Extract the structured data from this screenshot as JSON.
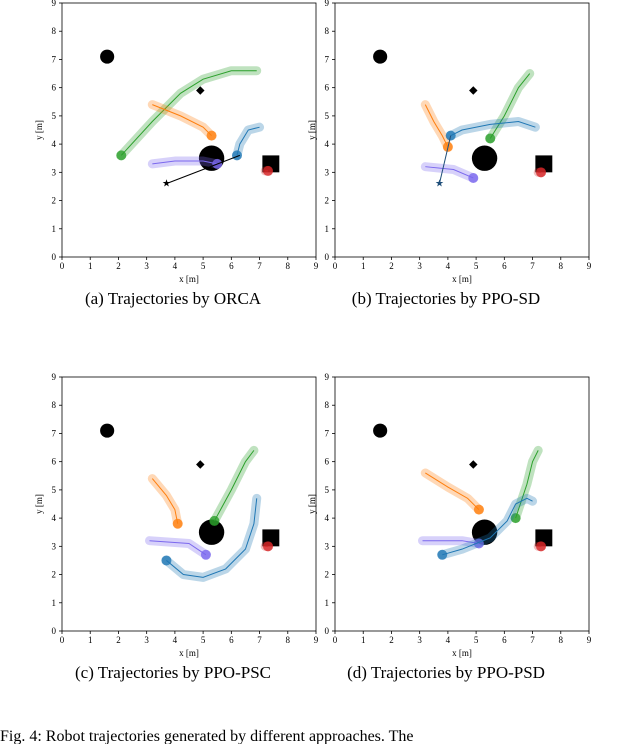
{
  "chart_data": [
    {
      "type": "trajectory",
      "caption": "(a)  Trajectories by ORCA",
      "xlabel": "x [m]",
      "ylabel": "y [m]",
      "xlim": [
        0,
        9
      ],
      "ylim": [
        0,
        9
      ],
      "xticks": [
        0,
        1,
        2,
        3,
        4,
        5,
        6,
        7,
        8,
        9
      ],
      "yticks": [
        0,
        1,
        2,
        3,
        4,
        5,
        6,
        7,
        8,
        9
      ],
      "obstacles": [
        {
          "shape": "circle",
          "x": 1.6,
          "y": 7.1,
          "size": 0.25
        },
        {
          "shape": "circle",
          "x": 5.3,
          "y": 3.5,
          "size": 0.45
        },
        {
          "shape": "diamond",
          "x": 4.9,
          "y": 5.9,
          "size": 0.15
        },
        {
          "shape": "square",
          "x": 7.4,
          "y": 3.3,
          "size": 0.3
        }
      ],
      "series": [
        {
          "color": "#2ca02c",
          "style": "trail",
          "x": [
            6.9,
            6.0,
            5.0,
            4.2,
            3.2,
            2.1
          ],
          "y": [
            6.6,
            6.6,
            6.3,
            5.8,
            4.8,
            3.6
          ]
        },
        {
          "color": "#ff7f0e",
          "style": "trail",
          "x": [
            3.2,
            4.2,
            5.0,
            5.3
          ],
          "y": [
            5.4,
            5.0,
            4.6,
            4.3
          ]
        },
        {
          "color": "#1f77b4",
          "style": "trail",
          "x": [
            7.0,
            6.6,
            6.3,
            6.2
          ],
          "y": [
            4.6,
            4.5,
            4.0,
            3.6
          ]
        },
        {
          "color": "#7b68ee",
          "style": "trail",
          "x": [
            3.2,
            4.0,
            5.0,
            5.5
          ],
          "y": [
            3.3,
            3.4,
            3.4,
            3.3
          ]
        },
        {
          "color": "#d62728",
          "style": "trail",
          "x": [
            7.2,
            7.3
          ],
          "y": [
            3.05,
            3.05
          ]
        },
        {
          "color": "#000000",
          "style": "robot",
          "x": [
            3.7,
            6.3
          ],
          "y": [
            2.6,
            3.6
          ]
        }
      ]
    },
    {
      "type": "trajectory",
      "caption": "(b)  Trajectories by PPO-SD",
      "xlabel": "x [m]",
      "ylabel": "y [m]",
      "xlim": [
        0,
        9
      ],
      "ylim": [
        0,
        9
      ],
      "xticks": [
        0,
        1,
        2,
        3,
        4,
        5,
        6,
        7,
        8,
        9
      ],
      "yticks": [
        0,
        1,
        2,
        3,
        4,
        5,
        6,
        7,
        8,
        9
      ],
      "obstacles": [
        {
          "shape": "circle",
          "x": 1.6,
          "y": 7.1,
          "size": 0.25
        },
        {
          "shape": "circle",
          "x": 5.3,
          "y": 3.5,
          "size": 0.45
        },
        {
          "shape": "diamond",
          "x": 4.9,
          "y": 5.9,
          "size": 0.15
        },
        {
          "shape": "square",
          "x": 7.4,
          "y": 3.3,
          "size": 0.3
        }
      ],
      "series": [
        {
          "color": "#2ca02c",
          "style": "trail",
          "x": [
            6.9,
            6.5,
            6.0,
            5.5
          ],
          "y": [
            6.5,
            6.0,
            5.0,
            4.2
          ]
        },
        {
          "color": "#ff7f0e",
          "style": "trail",
          "x": [
            3.2,
            3.5,
            3.8,
            4.0
          ],
          "y": [
            5.4,
            4.8,
            4.3,
            3.9
          ]
        },
        {
          "color": "#1f77b4",
          "style": "trail",
          "x": [
            7.1,
            6.5,
            5.5,
            4.5,
            4.1
          ],
          "y": [
            4.6,
            4.8,
            4.7,
            4.5,
            4.3
          ]
        },
        {
          "color": "#7b68ee",
          "style": "trail",
          "x": [
            3.2,
            4.2,
            4.9
          ],
          "y": [
            3.2,
            3.1,
            2.8
          ]
        },
        {
          "color": "#d62728",
          "style": "trail",
          "x": [
            7.2,
            7.3
          ],
          "y": [
            3.0,
            3.0
          ]
        },
        {
          "color": "#1f4e79",
          "style": "robot",
          "x": [
            3.7,
            4.1
          ],
          "y": [
            2.6,
            4.3
          ]
        }
      ]
    },
    {
      "type": "trajectory",
      "caption": "(c)  Trajectories by PPO-PSC",
      "xlabel": "x [m]",
      "ylabel": "y [m]",
      "xlim": [
        0,
        9
      ],
      "ylim": [
        0,
        9
      ],
      "xticks": [
        0,
        1,
        2,
        3,
        4,
        5,
        6,
        7,
        8,
        9
      ],
      "yticks": [
        0,
        1,
        2,
        3,
        4,
        5,
        6,
        7,
        8,
        9
      ],
      "obstacles": [
        {
          "shape": "circle",
          "x": 1.6,
          "y": 7.1,
          "size": 0.25
        },
        {
          "shape": "circle",
          "x": 5.3,
          "y": 3.5,
          "size": 0.45
        },
        {
          "shape": "diamond",
          "x": 4.9,
          "y": 5.9,
          "size": 0.15
        },
        {
          "shape": "square",
          "x": 7.4,
          "y": 3.3,
          "size": 0.3
        }
      ],
      "series": [
        {
          "color": "#2ca02c",
          "style": "trail",
          "x": [
            6.8,
            6.5,
            6.0,
            5.4
          ],
          "y": [
            6.4,
            6.0,
            5.0,
            3.9
          ]
        },
        {
          "color": "#ff7f0e",
          "style": "trail",
          "x": [
            3.2,
            3.7,
            4.0,
            4.1
          ],
          "y": [
            5.4,
            4.8,
            4.3,
            3.8
          ]
        },
        {
          "color": "#7b68ee",
          "style": "trail",
          "x": [
            3.1,
            4.5,
            5.1
          ],
          "y": [
            3.2,
            3.1,
            2.7
          ]
        },
        {
          "color": "#d62728",
          "style": "trail",
          "x": [
            7.2,
            7.3
          ],
          "y": [
            3.0,
            3.0
          ]
        },
        {
          "color": "#1f77b4",
          "style": "trail",
          "x": [
            6.9,
            6.8,
            6.5,
            5.8,
            5.0,
            4.3,
            3.7
          ],
          "y": [
            4.7,
            3.8,
            2.9,
            2.2,
            1.9,
            2.0,
            2.5
          ]
        }
      ]
    },
    {
      "type": "trajectory",
      "caption": "(d)  Trajectories by PPO-PSD",
      "xlabel": "x [m]",
      "ylabel": "y [m]",
      "xlim": [
        0,
        9
      ],
      "ylim": [
        0,
        9
      ],
      "xticks": [
        0,
        1,
        2,
        3,
        4,
        5,
        6,
        7,
        8,
        9
      ],
      "yticks": [
        0,
        1,
        2,
        3,
        4,
        5,
        6,
        7,
        8,
        9
      ],
      "obstacles": [
        {
          "shape": "circle",
          "x": 1.6,
          "y": 7.1,
          "size": 0.25
        },
        {
          "shape": "circle",
          "x": 5.3,
          "y": 3.5,
          "size": 0.45
        },
        {
          "shape": "diamond",
          "x": 4.9,
          "y": 5.9,
          "size": 0.15
        },
        {
          "shape": "square",
          "x": 7.4,
          "y": 3.3,
          "size": 0.3
        }
      ],
      "series": [
        {
          "color": "#2ca02c",
          "style": "trail",
          "x": [
            7.2,
            7.0,
            6.8,
            6.4
          ],
          "y": [
            6.4,
            6.0,
            5.2,
            4.0
          ]
        },
        {
          "color": "#ff7f0e",
          "style": "trail",
          "x": [
            3.2,
            4.0,
            4.7,
            5.1
          ],
          "y": [
            5.6,
            5.1,
            4.7,
            4.3
          ]
        },
        {
          "color": "#7b68ee",
          "style": "trail",
          "x": [
            3.1,
            4.5,
            5.1
          ],
          "y": [
            3.2,
            3.2,
            3.1
          ]
        },
        {
          "color": "#d62728",
          "style": "trail",
          "x": [
            7.2,
            7.3
          ],
          "y": [
            3.0,
            3.0
          ]
        },
        {
          "color": "#1f77b4",
          "style": "trail",
          "x": [
            7.0,
            6.8,
            6.4,
            6.1,
            5.5,
            4.5,
            3.8
          ],
          "y": [
            4.6,
            4.7,
            4.5,
            3.9,
            3.3,
            2.9,
            2.7
          ]
        }
      ]
    }
  ],
  "footer": "Fig. 4:   Robot trajectories generated by different approaches. The"
}
